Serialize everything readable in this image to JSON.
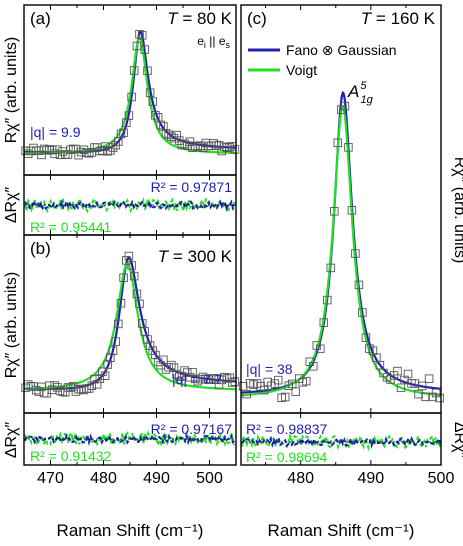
{
  "colors": {
    "fano": "#1f1fb4",
    "voigt": "#22e022",
    "data": "#555555",
    "axis": "#000000"
  },
  "chart_data": [
    {
      "panel": "a",
      "type": "line",
      "label": "(a)",
      "temperature": "80 K",
      "polarization": "e_i || e_s",
      "q_text": "|q| = 9.9",
      "xlim": [
        465,
        505
      ],
      "xticks": [
        470,
        480,
        490,
        500
      ],
      "ylabel": "Rχ″ (arb. units)",
      "residual_ylabel": "ΔRχ″",
      "peak": {
        "center": 486.8,
        "width": 1.7,
        "q": 9.9,
        "height": 1.0
      },
      "series": [
        {
          "name": "Fano ⊗ Gaussian",
          "r2_text": "R² = 0.97871"
        },
        {
          "name": "Voigt",
          "r2_text": "R² = 0.95441"
        }
      ]
    },
    {
      "panel": "b",
      "type": "line",
      "label": "(b)",
      "temperature": "300 K",
      "q_text": "|q| = 7.7",
      "xlim": [
        465,
        505
      ],
      "xticks": [
        470,
        480,
        490,
        500
      ],
      "xlabel": "Raman Shift (cm⁻¹)",
      "ylabel": "Rχ″ (arb. units)",
      "residual_ylabel": "ΔRχ″",
      "peak": {
        "center": 484.5,
        "width": 2.3,
        "q": 7.7,
        "height": 1.0
      },
      "series": [
        {
          "name": "Fano ⊗ Gaussian",
          "r2_text": "R² = 0.97167"
        },
        {
          "name": "Voigt",
          "r2_text": "R² = 0.91432"
        }
      ]
    },
    {
      "panel": "c",
      "type": "line",
      "label": "(c)",
      "temperature": "160 K",
      "mode": "A_1g^5",
      "q_text": "|q| = 38",
      "xlim": [
        471.5,
        500
      ],
      "xticks": [
        480,
        490,
        500
      ],
      "xlabel": "Raman Shift (cm⁻¹)",
      "ylabel": "Rχ″ (arb. units)",
      "residual_ylabel": "ΔRχ″",
      "peak": {
        "center": 486.0,
        "width": 1.6,
        "q": 38,
        "height": 1.0
      },
      "series": [
        {
          "name": "Fano ⊗ Gaussian",
          "r2_text": "R² = 0.98837"
        },
        {
          "name": "Voigt",
          "r2_text": "R² = 0.98694"
        }
      ]
    }
  ]
}
